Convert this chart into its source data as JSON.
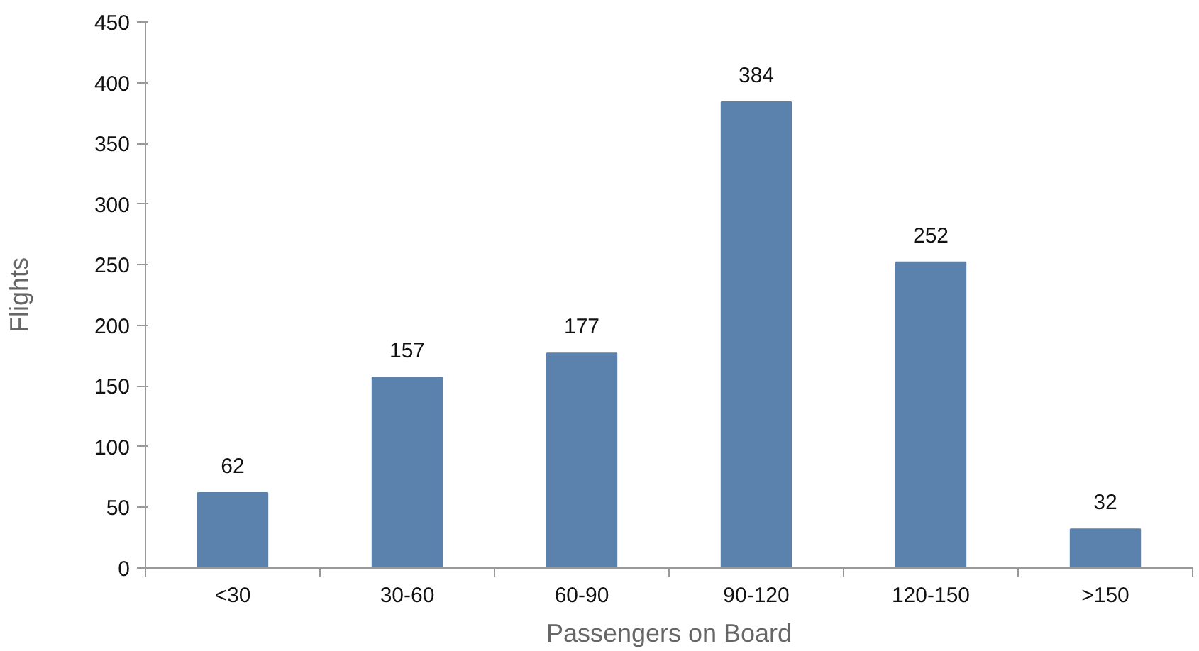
{
  "chart_data": {
    "type": "bar",
    "xlabel": "Passengers on Board",
    "ylabel": "Flights",
    "categories": [
      "<30",
      "30-60",
      "60-90",
      "90-120",
      "120-150",
      ">150"
    ],
    "values": [
      62,
      157,
      177,
      384,
      252,
      32
    ],
    "color": "#5a82ad",
    "ylim": [
      0,
      450
    ],
    "yticks": [
      0,
      50,
      100,
      150,
      200,
      250,
      300,
      350,
      400,
      450
    ],
    "grid": false,
    "data_labels": true
  }
}
